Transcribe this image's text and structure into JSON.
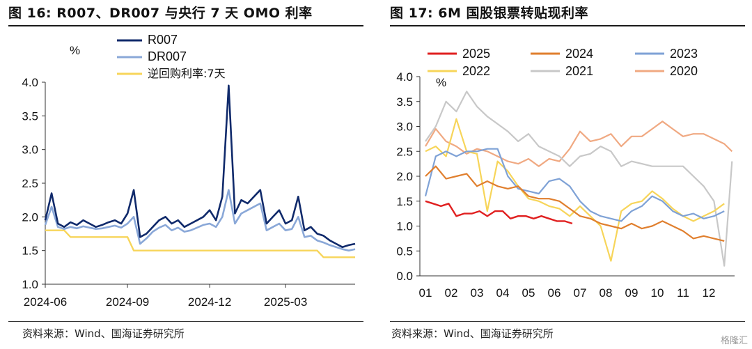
{
  "left": {
    "title": "图 16:  R007、DR007 与央行 7 天 OMO 利率",
    "source": "资料来源：Wind、国海证券研究所",
    "chart_data": {
      "type": "line",
      "unit": "%",
      "ylim": [
        1.0,
        4.0
      ],
      "y_ticks": [
        "1.0",
        "1.5",
        "2.0",
        "2.5",
        "3.0",
        "3.5",
        "4.0"
      ],
      "x_ticks": [
        "2024-06",
        "2024-09",
        "2024-12",
        "2025-03"
      ],
      "x_tick_idx": [
        0,
        13,
        26,
        38
      ],
      "x_count": 50,
      "series": [
        {
          "name": "R007",
          "color": "#102a6b",
          "width": 2.6,
          "values": [
            1.95,
            2.35,
            1.9,
            1.85,
            1.92,
            1.88,
            1.95,
            1.9,
            1.85,
            1.88,
            1.92,
            1.95,
            1.9,
            2.05,
            2.4,
            1.7,
            1.75,
            1.85,
            1.95,
            2.0,
            1.9,
            1.95,
            1.85,
            1.9,
            1.95,
            2.0,
            2.1,
            1.95,
            2.3,
            3.95,
            2.05,
            2.25,
            2.2,
            2.3,
            2.4,
            1.9,
            2.0,
            2.1,
            1.9,
            1.95,
            2.3,
            1.8,
            1.85,
            1.75,
            1.72,
            1.65,
            1.6,
            1.55,
            1.58,
            1.6
          ]
        },
        {
          "name": "DR007",
          "color": "#8aa8d8",
          "width": 2.6,
          "values": [
            1.88,
            2.15,
            1.85,
            1.82,
            1.85,
            1.83,
            1.86,
            1.84,
            1.82,
            1.83,
            1.85,
            1.87,
            1.84,
            1.9,
            2.0,
            1.6,
            1.68,
            1.78,
            1.84,
            1.88,
            1.8,
            1.84,
            1.78,
            1.8,
            1.84,
            1.88,
            1.9,
            1.85,
            2.0,
            2.4,
            1.9,
            2.05,
            2.1,
            2.15,
            2.2,
            1.8,
            1.85,
            1.9,
            1.8,
            1.82,
            2.0,
            1.7,
            1.72,
            1.65,
            1.62,
            1.58,
            1.55,
            1.52,
            1.5,
            1.52
          ]
        },
        {
          "name": "逆回购利率:7天",
          "color": "#f7d55a",
          "width": 2.4,
          "values": [
            1.8,
            1.8,
            1.8,
            1.8,
            1.7,
            1.7,
            1.7,
            1.7,
            1.7,
            1.7,
            1.7,
            1.7,
            1.7,
            1.7,
            1.5,
            1.5,
            1.5,
            1.5,
            1.5,
            1.5,
            1.5,
            1.5,
            1.5,
            1.5,
            1.5,
            1.5,
            1.5,
            1.5,
            1.5,
            1.5,
            1.5,
            1.5,
            1.5,
            1.5,
            1.5,
            1.5,
            1.5,
            1.5,
            1.5,
            1.5,
            1.5,
            1.5,
            1.5,
            1.5,
            1.4,
            1.4,
            1.4,
            1.4,
            1.4,
            1.4
          ]
        }
      ]
    }
  },
  "right": {
    "title": "图 17:  6M 国股银票转贴现利率",
    "source": "资料来源：Wind、国海证券研究所",
    "chart_data": {
      "type": "line",
      "unit": "%",
      "ylim": [
        0.0,
        4.0
      ],
      "y_ticks": [
        "0.0",
        "0.5",
        "1.0",
        "1.5",
        "2.0",
        "2.5",
        "3.0",
        "3.5",
        "4.0"
      ],
      "x_ticks": [
        "01",
        "02",
        "03",
        "04",
        "05",
        "06",
        "07",
        "08",
        "09",
        "10",
        "11",
        "12"
      ],
      "x_count": 12,
      "series": [
        {
          "name": "2025",
          "color": "#e02020",
          "width": 2.4,
          "x": [
            1,
            1.3,
            1.6,
            1.9,
            2.2,
            2.5,
            2.8,
            3.1,
            3.4,
            3.7,
            4,
            4.3,
            4.6,
            4.9,
            5.2,
            5.5,
            5.8,
            6.1,
            6.4,
            6.7
          ],
          "values": [
            1.5,
            1.45,
            1.4,
            1.45,
            1.2,
            1.25,
            1.25,
            1.3,
            1.2,
            1.3,
            1.3,
            1.15,
            1.2,
            1.2,
            1.15,
            1.2,
            1.15,
            1.1,
            1.1,
            1.05
          ]
        },
        {
          "name": "2024",
          "color": "#e07f2e",
          "width": 2.2,
          "x": [
            1,
            1.4,
            1.8,
            2.2,
            2.6,
            3,
            3.4,
            3.8,
            4.2,
            4.6,
            5,
            5.4,
            5.8,
            6.2,
            6.6,
            7,
            7.4,
            7.8,
            8.2,
            8.6,
            9,
            9.4,
            9.8,
            10.2,
            10.6,
            11,
            11.4,
            11.8,
            12.2,
            12.6
          ],
          "values": [
            2.0,
            2.2,
            1.95,
            2.0,
            2.05,
            1.8,
            1.9,
            1.8,
            1.75,
            1.8,
            1.6,
            1.55,
            1.55,
            1.5,
            1.35,
            1.2,
            1.15,
            1.05,
            1.0,
            0.95,
            1.05,
            0.95,
            1.0,
            1.1,
            1.0,
            0.9,
            0.75,
            0.8,
            0.75,
            0.7
          ]
        },
        {
          "name": "2023",
          "color": "#7fa2d6",
          "width": 2.2,
          "x": [
            1,
            1.4,
            1.8,
            2.2,
            2.6,
            3,
            3.4,
            3.8,
            4.2,
            4.6,
            5,
            5.4,
            5.8,
            6.2,
            6.6,
            7,
            7.4,
            7.8,
            8.2,
            8.6,
            9,
            9.4,
            9.8,
            10.2,
            10.6,
            11,
            11.4,
            11.8,
            12.2,
            12.6
          ],
          "values": [
            1.6,
            2.4,
            2.5,
            2.4,
            2.5,
            2.5,
            2.55,
            2.55,
            2.0,
            1.75,
            1.7,
            1.65,
            1.9,
            1.95,
            1.8,
            1.5,
            1.3,
            1.2,
            1.15,
            1.1,
            1.3,
            1.4,
            1.6,
            1.5,
            1.3,
            1.2,
            1.25,
            1.15,
            1.2,
            1.3
          ]
        },
        {
          "name": "2022",
          "color": "#f7d55a",
          "width": 2.2,
          "x": [
            1,
            1.4,
            1.8,
            2.2,
            2.6,
            3,
            3.4,
            3.8,
            4.2,
            4.6,
            5,
            5.4,
            5.8,
            6.2,
            6.6,
            7,
            7.4,
            7.8,
            8.2,
            8.6,
            9,
            9.4,
            9.8,
            10.2,
            10.6,
            11,
            11.4,
            11.8,
            12.2,
            12.6
          ],
          "values": [
            2.5,
            2.6,
            2.4,
            3.15,
            2.5,
            2.45,
            1.3,
            2.3,
            2.1,
            1.8,
            1.55,
            1.5,
            1.4,
            1.35,
            1.2,
            1.4,
            1.2,
            1.0,
            0.3,
            1.3,
            1.45,
            1.5,
            1.7,
            1.55,
            1.35,
            1.2,
            1.1,
            1.2,
            1.3,
            1.45
          ]
        },
        {
          "name": "2021",
          "color": "#c8c8c8",
          "width": 2.2,
          "x": [
            1,
            1.4,
            1.8,
            2.2,
            2.6,
            3,
            3.4,
            3.8,
            4.2,
            4.6,
            5,
            5.4,
            5.8,
            6.2,
            6.6,
            7,
            7.4,
            7.8,
            8.2,
            8.6,
            9,
            9.4,
            9.8,
            10.2,
            10.6,
            11,
            11.4,
            11.8,
            12.2,
            12.6,
            12.9
          ],
          "values": [
            2.7,
            3.0,
            3.5,
            3.3,
            3.7,
            3.4,
            3.2,
            3.05,
            2.9,
            2.7,
            2.85,
            2.6,
            2.5,
            2.4,
            2.2,
            2.4,
            2.45,
            2.6,
            2.5,
            2.2,
            2.3,
            2.25,
            2.2,
            2.2,
            2.2,
            2.2,
            2.0,
            1.8,
            1.5,
            0.2,
            2.3
          ]
        },
        {
          "name": "2020",
          "color": "#f0a982",
          "width": 2.2,
          "x": [
            1,
            1.4,
            1.8,
            2.2,
            2.6,
            3,
            3.4,
            3.8,
            4.2,
            4.6,
            5,
            5.4,
            5.8,
            6.2,
            6.6,
            7,
            7.4,
            7.8,
            8.2,
            8.6,
            9,
            9.4,
            9.8,
            10.2,
            10.6,
            11,
            11.4,
            11.8,
            12.2,
            12.6,
            12.9
          ],
          "values": [
            2.6,
            2.95,
            2.7,
            2.6,
            2.45,
            2.55,
            2.5,
            2.4,
            2.3,
            2.25,
            2.35,
            2.2,
            2.35,
            2.3,
            2.55,
            2.9,
            2.7,
            2.75,
            2.85,
            2.6,
            2.8,
            2.8,
            2.95,
            3.1,
            2.95,
            2.8,
            2.85,
            2.85,
            2.75,
            2.65,
            2.5
          ]
        }
      ]
    }
  },
  "watermark": "格隆汇"
}
